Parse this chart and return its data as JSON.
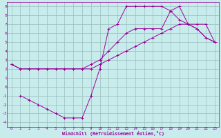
{
  "xlabel": "Windchill (Refroidissement éolien,°C)",
  "bg_color": "#c8ecec",
  "line_color": "#990099",
  "grid_color": "#9bbfbf",
  "xlim": [
    -0.5,
    23.5
  ],
  "ylim": [
    -4.5,
    9.5
  ],
  "xticks": [
    0,
    1,
    2,
    3,
    4,
    5,
    6,
    7,
    8,
    9,
    10,
    11,
    12,
    13,
    14,
    15,
    16,
    17,
    18,
    19,
    20,
    21,
    22,
    23
  ],
  "yticks": [
    -4,
    -3,
    -2,
    -1,
    0,
    1,
    2,
    3,
    4,
    5,
    6,
    7,
    8,
    9
  ],
  "line1_x": [
    0,
    1,
    2,
    3,
    4,
    5,
    6,
    7,
    8,
    9,
    10,
    11,
    12,
    13,
    14,
    15,
    16,
    17,
    18,
    19,
    20,
    21,
    22,
    23
  ],
  "line1_y": [
    2.5,
    2.0,
    2.0,
    2.0,
    2.0,
    2.0,
    2.0,
    2.0,
    2.0,
    2.0,
    2.5,
    3.0,
    3.5,
    4.0,
    4.5,
    5.0,
    5.5,
    6.0,
    6.5,
    7.0,
    7.0,
    7.0,
    7.0,
    5.0
  ],
  "line2_x": [
    0,
    1,
    2,
    3,
    4,
    5,
    6,
    7,
    8,
    9,
    10,
    11,
    12,
    13,
    14,
    15,
    16,
    17,
    18,
    19,
    20,
    21,
    22,
    23
  ],
  "line2_y": [
    2.5,
    2.0,
    2.0,
    2.0,
    2.0,
    2.0,
    2.0,
    2.0,
    2.0,
    2.5,
    3.0,
    4.0,
    5.0,
    6.0,
    6.5,
    6.5,
    6.5,
    6.5,
    8.5,
    7.5,
    7.0,
    6.5,
    5.5,
    5.0
  ],
  "line3_x": [
    1,
    2,
    3,
    4,
    5,
    6,
    7,
    8,
    9,
    10,
    11,
    12,
    13,
    14,
    15,
    16,
    17,
    18,
    19,
    20,
    21,
    22,
    23
  ],
  "line3_y": [
    -1.0,
    -1.5,
    -2.0,
    -2.5,
    -3.0,
    -3.5,
    -3.5,
    -3.5,
    -1.0,
    2.0,
    6.5,
    7.0,
    9.0,
    9.0,
    9.0,
    9.0,
    9.0,
    8.5,
    9.0,
    7.0,
    6.5,
    5.5,
    5.0
  ]
}
